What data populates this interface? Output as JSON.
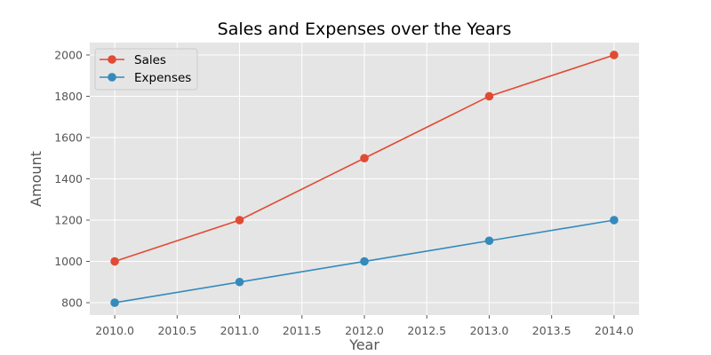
{
  "chart_data": {
    "type": "line",
    "title": "Sales and Expenses over the Years",
    "xlabel": "Year",
    "ylabel": "Amount",
    "x": [
      2010,
      2011,
      2012,
      2013,
      2014
    ],
    "xlim": [
      2009.8,
      2014.2
    ],
    "ylim": [
      740,
      2060
    ],
    "xticks": [
      2010.0,
      2010.5,
      2011.0,
      2011.5,
      2012.0,
      2012.5,
      2013.0,
      2013.5,
      2014.0
    ],
    "xtick_labels": [
      "2010.0",
      "2010.5",
      "2011.0",
      "2011.5",
      "2012.0",
      "2012.5",
      "2013.0",
      "2013.5",
      "2014.0"
    ],
    "yticks": [
      800,
      1000,
      1200,
      1400,
      1600,
      1800,
      2000
    ],
    "ytick_labels": [
      "800",
      "1000",
      "1200",
      "1400",
      "1600",
      "1800",
      "2000"
    ],
    "grid": true,
    "legend_position": "top-left",
    "series": [
      {
        "name": "Sales",
        "color": "#E24A33",
        "values": [
          1000,
          1200,
          1500,
          1800,
          2000
        ]
      },
      {
        "name": "Expenses",
        "color": "#348ABD",
        "values": [
          800,
          900,
          1000,
          1100,
          1200
        ]
      }
    ],
    "colors": {
      "plot_background": "#E5E5E5",
      "grid": "#FFFFFF",
      "text": "#555555"
    }
  }
}
